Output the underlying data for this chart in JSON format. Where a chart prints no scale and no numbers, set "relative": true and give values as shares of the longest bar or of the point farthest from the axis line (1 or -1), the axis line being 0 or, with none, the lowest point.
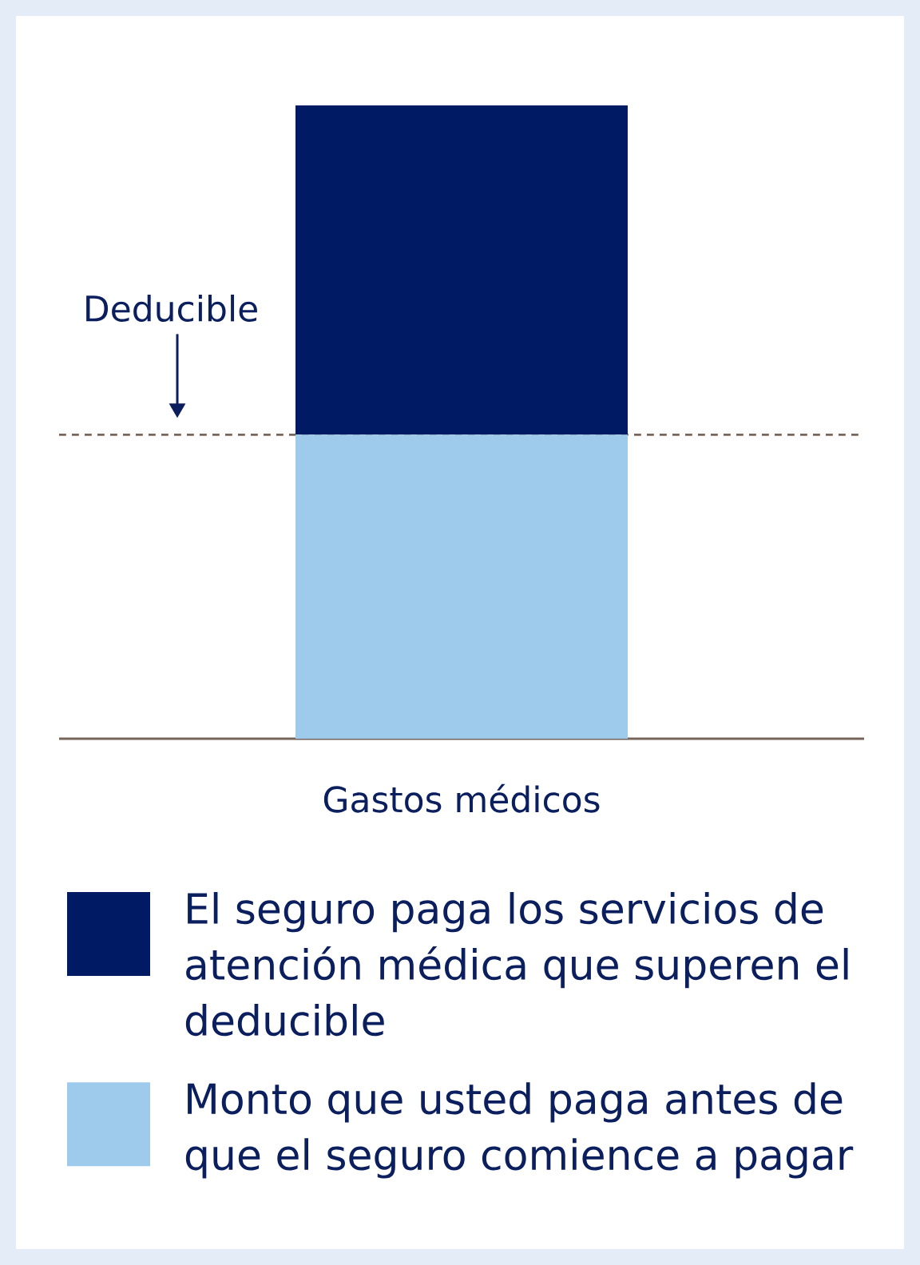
{
  "chart_data": {
    "type": "bar",
    "stacked": true,
    "relative": true,
    "xlabel": "Gastos médicos",
    "categories": [
      null
    ],
    "series": [
      {
        "name": "Monto que usted paga antes de que el seguro comience a pagar",
        "color": "#9ecbec",
        "values": [
          0.48
        ]
      },
      {
        "name": "El seguro paga los servicios de atención médica que superen el deducible",
        "color": "#001a63",
        "values": [
          0.52
        ]
      }
    ],
    "ref_lines": [
      {
        "axis": "y",
        "value": 0.48,
        "color": "#786559",
        "line_style": "dashed"
      }
    ],
    "annotations": [
      "Deducible"
    ],
    "legend": "bottom"
  }
}
